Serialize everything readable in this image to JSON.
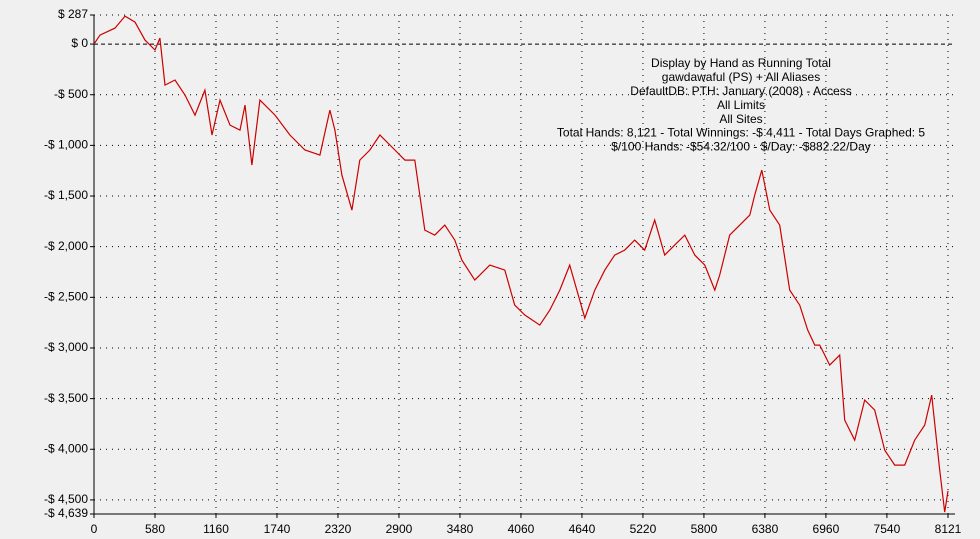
{
  "chart_data": {
    "type": "line",
    "annotation_lines": [
      "Display by Hand as Running Total",
      "gawdawaful (PS) + All Aliases",
      "DefaultDB: PTH: January (2008) - Access",
      "All Limits",
      "All Sites",
      "Total Hands: 8,121 - Total Winnings: -$ 4,411 - Total Days Graphed: 5",
      "$/100 Hands: -$54.32/100 - $/Day: -$882.22/Day"
    ],
    "x": [
      0,
      57,
      200,
      295,
      390,
      485,
      580,
      627,
      675,
      770,
      865,
      960,
      1055,
      1122,
      1198,
      1293,
      1388,
      1436,
      1502,
      1578,
      1721,
      1863,
      2006,
      2148,
      2243,
      2291,
      2357,
      2452,
      2528,
      2624,
      2719,
      2861,
      2956,
      3051,
      3146,
      3241,
      3336,
      3431,
      3498,
      3621,
      3764,
      3906,
      4001,
      4097,
      4239,
      4334,
      4429,
      4524,
      4619,
      4667,
      4762,
      4857,
      4952,
      5047,
      5142,
      5237,
      5332,
      5427,
      5522,
      5618,
      5713,
      5808,
      5903,
      5950,
      6045,
      6141,
      6236,
      6283,
      6350,
      6426,
      6521,
      6616,
      6711,
      6787,
      6854,
      6901,
      6949,
      6996,
      7091,
      7139,
      7234,
      7329,
      7424,
      7519,
      7614,
      7709,
      7804,
      7899,
      7966,
      8042,
      8090,
      8121
    ],
    "series": [
      {
        "name": "Running Total",
        "color": "#cc0000",
        "values": [
          0,
          89,
          158,
          276,
          217,
          39,
          -59,
          59,
          -405,
          -355,
          -503,
          -701,
          -454,
          -898,
          -553,
          -800,
          -849,
          -602,
          -1194,
          -553,
          -701,
          -898,
          -1046,
          -1096,
          -652,
          -849,
          -1293,
          -1639,
          -1145,
          -1046,
          -898,
          -1046,
          -1145,
          -1145,
          -1836,
          -1886,
          -1787,
          -1935,
          -2132,
          -2330,
          -2182,
          -2231,
          -2577,
          -2675,
          -2774,
          -2626,
          -2429,
          -2182,
          -2527,
          -2705,
          -2429,
          -2231,
          -2083,
          -2034,
          -1935,
          -2034,
          -1737,
          -2083,
          -1984,
          -1886,
          -2083,
          -2182,
          -2429,
          -2280,
          -1886,
          -1787,
          -1688,
          -1491,
          -1244,
          -1639,
          -1787,
          -2429,
          -2577,
          -2823,
          -2972,
          -2972,
          -3070,
          -3169,
          -3070,
          -3712,
          -3909,
          -3514,
          -3613,
          -4008,
          -4156,
          -4156,
          -3909,
          -3761,
          -3465,
          -4206,
          -4620,
          -4411
        ]
      }
    ],
    "xlim": [
      0,
      8121
    ],
    "xticks": [
      0,
      580,
      1160,
      1740,
      2320,
      2900,
      3480,
      4060,
      4640,
      5220,
      5800,
      6380,
      6960,
      7540,
      8121
    ],
    "ylim": [
      -4639,
      287
    ],
    "yticks": [
      {
        "value": 287,
        "label": "$ 287"
      },
      {
        "value": 0,
        "label": "$ 0"
      },
      {
        "value": -500,
        "label": "-$ 500"
      },
      {
        "value": -1000,
        "label": "-$ 1,000"
      },
      {
        "value": -1500,
        "label": "-$ 1,500"
      },
      {
        "value": -2000,
        "label": "-$ 2,000"
      },
      {
        "value": -2500,
        "label": "-$ 2,500"
      },
      {
        "value": -3000,
        "label": "-$ 3,000"
      },
      {
        "value": -3500,
        "label": "-$ 3,500"
      },
      {
        "value": -4000,
        "label": "-$ 4,000"
      },
      {
        "value": -4500,
        "label": "-$ 4,500"
      },
      {
        "value": -4639,
        "label": "-$ 4,639"
      }
    ],
    "grid": true
  }
}
